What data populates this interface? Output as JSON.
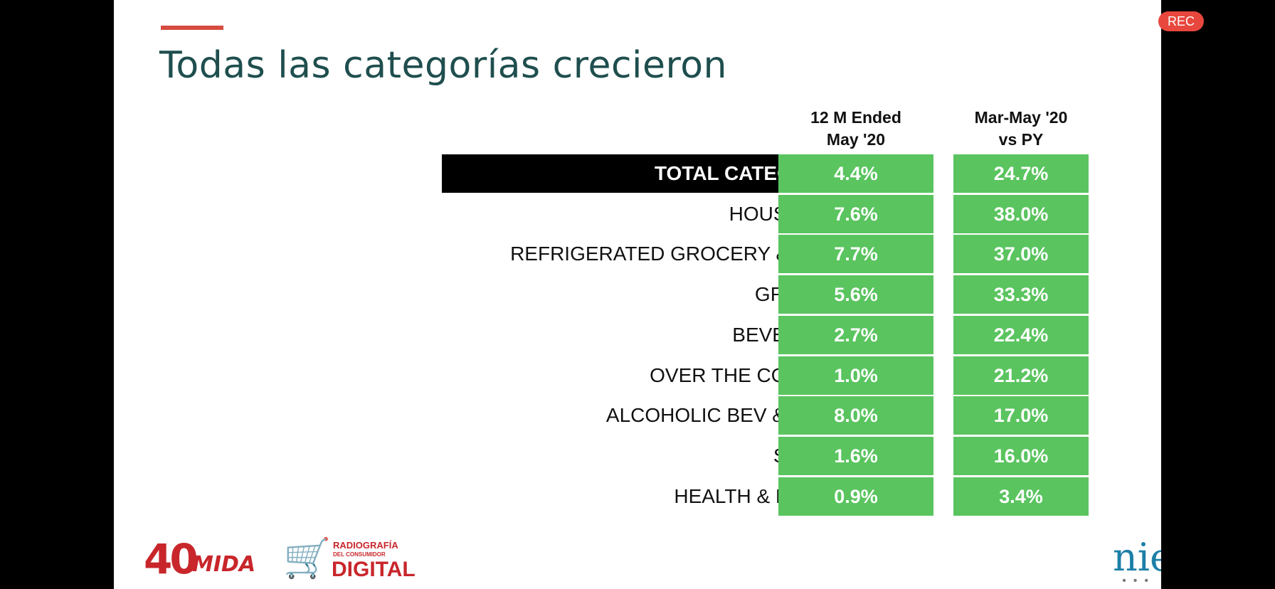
{
  "slide": {
    "title": "Todas las categorías crecieron",
    "column_headers": [
      [
        "12 M Ended",
        "May '20"
      ],
      [
        "Mar-May '20",
        "vs PY"
      ]
    ],
    "rows": [
      {
        "label": "TOTAL CATEGORIES",
        "v1": "4.4%",
        "v2": "24.7%",
        "highlight": true
      },
      {
        "label": "HOUSEHOLD",
        "v1": "7.6%",
        "v2": "38.0%"
      },
      {
        "label": "REFRIGERATED GROCERY & DAIRY",
        "v1": "7.7%",
        "v2": "37.0%"
      },
      {
        "label": "GROCERY",
        "v1": "5.6%",
        "v2": "33.3%"
      },
      {
        "label": "BEVERAGES",
        "v1": "2.7%",
        "v2": "22.4%"
      },
      {
        "label": "OVER THE COUNTER",
        "v1": "1.0%",
        "v2": "21.2%"
      },
      {
        "label": "ALCOHOLIC BEV & CIGGS",
        "v1": "8.0%",
        "v2": "17.0%"
      },
      {
        "label": "SNACKS",
        "v1": "1.6%",
        "v2": "16.0%"
      },
      {
        "label": "HEALTH & BEAUTY",
        "v1": "0.9%",
        "v2": "3.4%"
      }
    ],
    "colors": {
      "cell_green": "#5ac45f",
      "title_teal": "#1f4e4e",
      "accent_red": "#d64b3f"
    }
  },
  "footer": {
    "logo_number": "40",
    "logo_name": "MIDA",
    "radiografia_line1": "RADIOGRAFÍA",
    "radiografia_line2": "DEL CONSUMIDOR",
    "radiografia_big": "DIGITAL",
    "partner_text": "nie"
  },
  "recording": {
    "badge": "REC"
  }
}
